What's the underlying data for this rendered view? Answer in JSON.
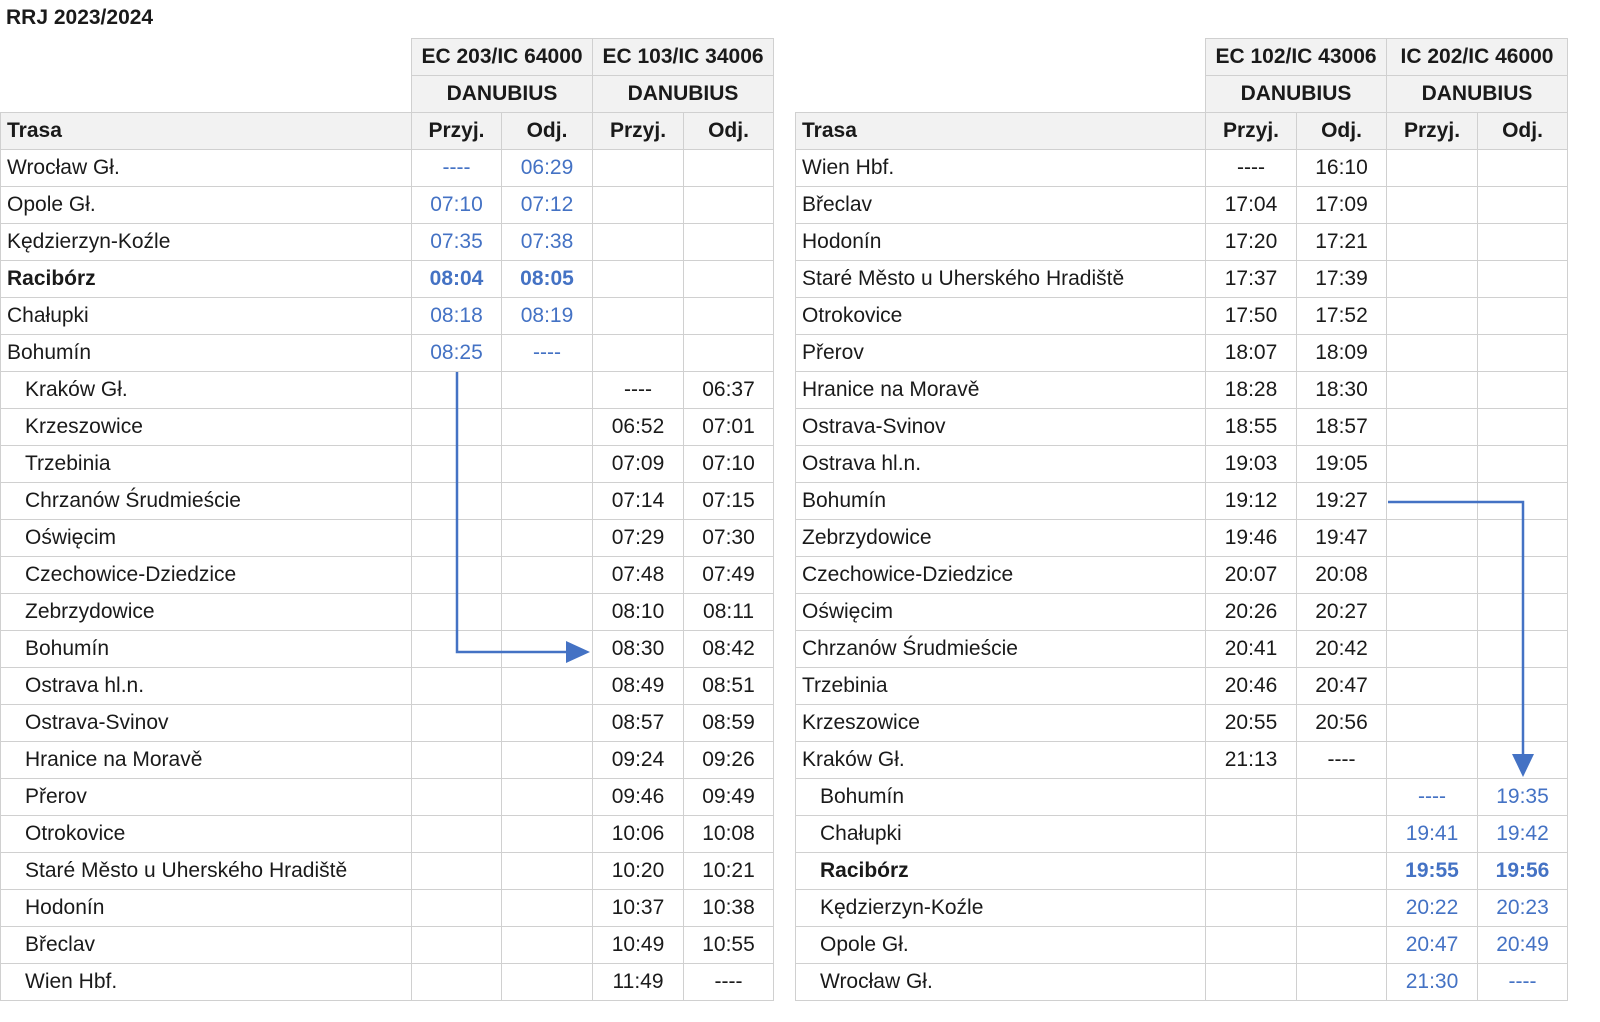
{
  "title": "RRJ 2023/2024",
  "colors": {
    "highlight": "#4472c4",
    "header_bg": "#f2f2f2"
  },
  "left": {
    "trains": [
      {
        "number": "EC 203/IC 64000",
        "name": "DANUBIUS"
      },
      {
        "number": "EC 103/IC 34006",
        "name": "DANUBIUS"
      }
    ],
    "headers": {
      "route": "Trasa",
      "arr": "Przyj.",
      "dep": "Odj."
    },
    "rows": [
      {
        "station": "Wrocław Gł.",
        "t": [
          "----",
          "06:29",
          "",
          ""
        ],
        "seg": 1
      },
      {
        "station": "Opole Gł.",
        "t": [
          "07:10",
          "07:12",
          "",
          ""
        ],
        "seg": 1
      },
      {
        "station": "Kędzierzyn-Koźle",
        "t": [
          "07:35",
          "07:38",
          "",
          ""
        ],
        "seg": 1
      },
      {
        "station": "Racibórz",
        "t": [
          "08:04",
          "08:05",
          "",
          ""
        ],
        "seg": 1,
        "bold": true
      },
      {
        "station": "Chałupki",
        "t": [
          "08:18",
          "08:19",
          "",
          ""
        ],
        "seg": 1
      },
      {
        "station": "Bohumín",
        "t": [
          "08:25",
          "----",
          "",
          ""
        ],
        "seg": 1
      },
      {
        "station": "Kraków Gł.",
        "t": [
          "",
          "",
          "----",
          "06:37"
        ],
        "seg": 2
      },
      {
        "station": "Krzeszowice",
        "t": [
          "",
          "",
          "06:52",
          "07:01"
        ],
        "seg": 2
      },
      {
        "station": "Trzebinia",
        "t": [
          "",
          "",
          "07:09",
          "07:10"
        ],
        "seg": 2
      },
      {
        "station": "Chrzanów Śrudmieście",
        "t": [
          "",
          "",
          "07:14",
          "07:15"
        ],
        "seg": 2
      },
      {
        "station": "Oświęcim",
        "t": [
          "",
          "",
          "07:29",
          "07:30"
        ],
        "seg": 2
      },
      {
        "station": "Czechowice-Dziedzice",
        "t": [
          "",
          "",
          "07:48",
          "07:49"
        ],
        "seg": 2
      },
      {
        "station": "Zebrzydowice",
        "t": [
          "",
          "",
          "08:10",
          "08:11"
        ],
        "seg": 2
      },
      {
        "station": "Bohumín",
        "t": [
          "",
          "",
          "08:30",
          "08:42"
        ],
        "seg": 2
      },
      {
        "station": "Ostrava hl.n.",
        "t": [
          "",
          "",
          "08:49",
          "08:51"
        ],
        "seg": 2
      },
      {
        "station": "Ostrava-Svinov",
        "t": [
          "",
          "",
          "08:57",
          "08:59"
        ],
        "seg": 2
      },
      {
        "station": "Hranice na Moravě",
        "t": [
          "",
          "",
          "09:24",
          "09:26"
        ],
        "seg": 2
      },
      {
        "station": "Přerov",
        "t": [
          "",
          "",
          "09:46",
          "09:49"
        ],
        "seg": 2
      },
      {
        "station": "Otrokovice",
        "t": [
          "",
          "",
          "10:06",
          "10:08"
        ],
        "seg": 2
      },
      {
        "station": "Staré Město u Uherského Hradiště",
        "t": [
          "",
          "",
          "10:20",
          "10:21"
        ],
        "seg": 2
      },
      {
        "station": "Hodonín",
        "t": [
          "",
          "",
          "10:37",
          "10:38"
        ],
        "seg": 2
      },
      {
        "station": "Břeclav",
        "t": [
          "",
          "",
          "10:49",
          "10:55"
        ],
        "seg": 2
      },
      {
        "station": "Wien Hbf.",
        "t": [
          "",
          "",
          "11:49",
          "----"
        ],
        "seg": 2
      }
    ]
  },
  "right": {
    "trains": [
      {
        "number": "EC 102/IC 43006",
        "name": "DANUBIUS"
      },
      {
        "number": "IC 202/IC 46000",
        "name": "DANUBIUS"
      }
    ],
    "headers": {
      "route": "Trasa",
      "arr": "Przyj.",
      "dep": "Odj."
    },
    "rows": [
      {
        "station": "Wien Hbf.",
        "t": [
          "----",
          "16:10",
          "",
          ""
        ],
        "seg": 1
      },
      {
        "station": "Břeclav",
        "t": [
          "17:04",
          "17:09",
          "",
          ""
        ],
        "seg": 1
      },
      {
        "station": "Hodonín",
        "t": [
          "17:20",
          "17:21",
          "",
          ""
        ],
        "seg": 1
      },
      {
        "station": "Staré Město u Uherského Hradiště",
        "t": [
          "17:37",
          "17:39",
          "",
          ""
        ],
        "seg": 1
      },
      {
        "station": "Otrokovice",
        "t": [
          "17:50",
          "17:52",
          "",
          ""
        ],
        "seg": 1
      },
      {
        "station": "Přerov",
        "t": [
          "18:07",
          "18:09",
          "",
          ""
        ],
        "seg": 1
      },
      {
        "station": "Hranice na Moravě",
        "t": [
          "18:28",
          "18:30",
          "",
          ""
        ],
        "seg": 1
      },
      {
        "station": "Ostrava-Svinov",
        "t": [
          "18:55",
          "18:57",
          "",
          ""
        ],
        "seg": 1
      },
      {
        "station": "Ostrava hl.n.",
        "t": [
          "19:03",
          "19:05",
          "",
          ""
        ],
        "seg": 1
      },
      {
        "station": "Bohumín",
        "t": [
          "19:12",
          "19:27",
          "",
          ""
        ],
        "seg": 1
      },
      {
        "station": "Zebrzydowice",
        "t": [
          "19:46",
          "19:47",
          "",
          ""
        ],
        "seg": 1
      },
      {
        "station": "Czechowice-Dziedzice",
        "t": [
          "20:07",
          "20:08",
          "",
          ""
        ],
        "seg": 1
      },
      {
        "station": "Oświęcim",
        "t": [
          "20:26",
          "20:27",
          "",
          ""
        ],
        "seg": 1
      },
      {
        "station": "Chrzanów Śrudmieście",
        "t": [
          "20:41",
          "20:42",
          "",
          ""
        ],
        "seg": 1
      },
      {
        "station": "Trzebinia",
        "t": [
          "20:46",
          "20:47",
          "",
          ""
        ],
        "seg": 1
      },
      {
        "station": "Krzeszowice",
        "t": [
          "20:55",
          "20:56",
          "",
          ""
        ],
        "seg": 1
      },
      {
        "station": "Kraków Gł.",
        "t": [
          "21:13",
          "----",
          "",
          ""
        ],
        "seg": 1
      },
      {
        "station": "Bohumín",
        "t": [
          "",
          "",
          "----",
          "19:35"
        ],
        "seg": 2
      },
      {
        "station": "Chałupki",
        "t": [
          "",
          "",
          "19:41",
          "19:42"
        ],
        "seg": 2
      },
      {
        "station": "Racibórz",
        "t": [
          "",
          "",
          "19:55",
          "19:56"
        ],
        "seg": 2,
        "bold": true
      },
      {
        "station": "Kędzierzyn-Koźle",
        "t": [
          "",
          "",
          "20:22",
          "20:23"
        ],
        "seg": 2
      },
      {
        "station": "Opole Gł.",
        "t": [
          "",
          "",
          "20:47",
          "20:49"
        ],
        "seg": 2
      },
      {
        "station": "Wrocław Gł.",
        "t": [
          "",
          "",
          "21:30",
          "----"
        ],
        "seg": 2
      }
    ]
  }
}
